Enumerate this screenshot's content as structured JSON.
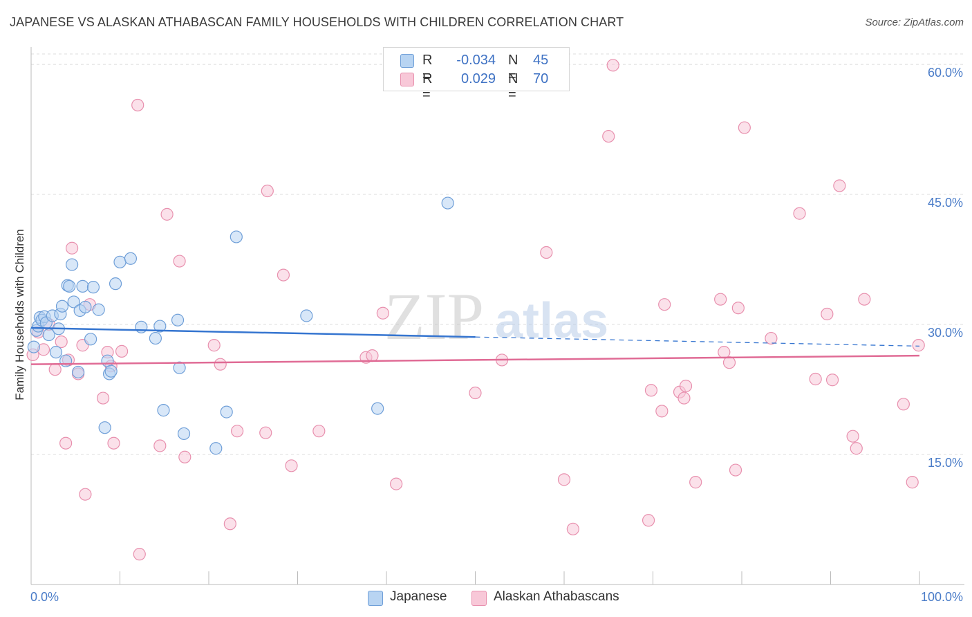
{
  "title": "JAPANESE VS ALASKAN ATHABASCAN FAMILY HOUSEHOLDS WITH CHILDREN CORRELATION CHART",
  "source": "Source: ZipAtlas.com",
  "watermark": {
    "zip": "ZIP",
    "atlas": "atlas"
  },
  "legend": {
    "japanese": {
      "r_label": "R =",
      "r_value": "-0.034",
      "n_label": "N =",
      "n_value": "45"
    },
    "alaskan": {
      "r_label": "R =",
      "r_value": " 0.029",
      "n_label": "N =",
      "n_value": "70"
    }
  },
  "bottom_legend": {
    "japanese": "Japanese",
    "alaskan": "Alaskan Athabascans"
  },
  "colors": {
    "japanese_fill": "#b8d4f2",
    "japanese_stroke": "#6f9fd8",
    "japanese_line": "#3575d0",
    "alaskan_fill": "#f8c8d8",
    "alaskan_stroke": "#e890ae",
    "alaskan_line": "#e06b95",
    "tick": "#4a7cc8",
    "grid": "#dcdcdc"
  },
  "chart_data": {
    "type": "scatter",
    "title": "JAPANESE VS ALASKAN ATHABASCAN FAMILY HOUSEHOLDS WITH CHILDREN CORRELATION CHART",
    "xlabel": "",
    "ylabel": "Family Households with Children",
    "xlim": [
      0,
      100
    ],
    "ylim": [
      0,
      62
    ],
    "x_tick_labels": [
      "0.0%",
      "100.0%"
    ],
    "y_ticks": [
      15,
      30,
      45,
      60
    ],
    "y_tick_labels": [
      "15.0%",
      "30.0%",
      "45.0%",
      "60.0%"
    ],
    "series": [
      {
        "name": "Japanese",
        "r": -0.034,
        "n": 45,
        "trend": {
          "x0": 0,
          "y0": 29.6,
          "x1": 100,
          "y1": 27.5,
          "solid_until": 50
        },
        "points": [
          [
            0.3,
            27.4
          ],
          [
            0.6,
            29.3
          ],
          [
            0.8,
            29.8
          ],
          [
            1.0,
            30.8
          ],
          [
            1.2,
            30.5
          ],
          [
            1.5,
            30.9
          ],
          [
            1.7,
            30.2
          ],
          [
            2.0,
            28.8
          ],
          [
            2.4,
            31.0
          ],
          [
            2.8,
            26.8
          ],
          [
            3.1,
            29.5
          ],
          [
            3.3,
            31.2
          ],
          [
            3.5,
            32.1
          ],
          [
            3.9,
            25.8
          ],
          [
            4.1,
            34.5
          ],
          [
            4.3,
            34.4
          ],
          [
            4.6,
            36.9
          ],
          [
            4.8,
            32.6
          ],
          [
            5.3,
            24.5
          ],
          [
            5.5,
            31.6
          ],
          [
            5.8,
            34.4
          ],
          [
            6.1,
            32.0
          ],
          [
            6.7,
            28.3
          ],
          [
            7.0,
            34.3
          ],
          [
            7.6,
            31.7
          ],
          [
            8.3,
            18.1
          ],
          [
            8.6,
            25.8
          ],
          [
            8.8,
            24.3
          ],
          [
            9.0,
            24.6
          ],
          [
            9.5,
            34.7
          ],
          [
            10.0,
            37.2
          ],
          [
            11.2,
            37.6
          ],
          [
            12.4,
            29.7
          ],
          [
            14.0,
            28.4
          ],
          [
            14.5,
            29.8
          ],
          [
            14.9,
            20.1
          ],
          [
            16.5,
            30.5
          ],
          [
            16.7,
            25.0
          ],
          [
            17.2,
            17.4
          ],
          [
            20.8,
            15.7
          ],
          [
            22.0,
            19.9
          ],
          [
            23.1,
            40.1
          ],
          [
            31.0,
            31.0
          ],
          [
            39.0,
            20.3
          ],
          [
            46.9,
            44.0
          ]
        ]
      },
      {
        "name": "Alaskan Athabascans",
        "r": 0.029,
        "n": 70,
        "trend": {
          "x0": 0,
          "y0": 25.4,
          "x1": 100,
          "y1": 26.4
        },
        "points": [
          [
            0.2,
            26.5
          ],
          [
            0.8,
            29.1
          ],
          [
            1.4,
            27.1
          ],
          [
            2.0,
            30.0
          ],
          [
            2.7,
            24.8
          ],
          [
            3.4,
            28.0
          ],
          [
            3.9,
            16.3
          ],
          [
            4.2,
            25.9
          ],
          [
            4.6,
            38.8
          ],
          [
            5.3,
            24.3
          ],
          [
            5.8,
            27.6
          ],
          [
            6.1,
            10.4
          ],
          [
            6.6,
            32.3
          ],
          [
            8.1,
            21.5
          ],
          [
            8.6,
            26.8
          ],
          [
            9.0,
            25.2
          ],
          [
            9.3,
            16.3
          ],
          [
            10.2,
            26.9
          ],
          [
            12.0,
            55.3
          ],
          [
            12.2,
            3.5
          ],
          [
            14.5,
            16.0
          ],
          [
            15.3,
            42.7
          ],
          [
            16.7,
            37.3
          ],
          [
            17.3,
            14.7
          ],
          [
            20.6,
            27.6
          ],
          [
            21.3,
            25.4
          ],
          [
            22.4,
            7.0
          ],
          [
            23.2,
            17.7
          ],
          [
            26.4,
            17.5
          ],
          [
            26.6,
            45.4
          ],
          [
            28.4,
            35.7
          ],
          [
            29.3,
            13.7
          ],
          [
            32.4,
            17.7
          ],
          [
            37.7,
            26.2
          ],
          [
            38.4,
            26.4
          ],
          [
            39.6,
            31.3
          ],
          [
            41.1,
            11.6
          ],
          [
            50.0,
            22.1
          ],
          [
            53.0,
            25.9
          ],
          [
            58.0,
            38.3
          ],
          [
            60.0,
            12.1
          ],
          [
            61.0,
            6.4
          ],
          [
            65.0,
            51.7
          ],
          [
            65.5,
            59.9
          ],
          [
            69.5,
            7.4
          ],
          [
            69.8,
            22.4
          ],
          [
            71.0,
            20.0
          ],
          [
            71.3,
            32.3
          ],
          [
            73.0,
            22.2
          ],
          [
            73.5,
            21.5
          ],
          [
            73.7,
            22.9
          ],
          [
            74.8,
            11.8
          ],
          [
            77.6,
            32.9
          ],
          [
            78.0,
            26.8
          ],
          [
            78.6,
            25.6
          ],
          [
            79.3,
            13.2
          ],
          [
            79.6,
            31.9
          ],
          [
            80.3,
            52.7
          ],
          [
            83.3,
            28.4
          ],
          [
            86.5,
            42.8
          ],
          [
            88.3,
            23.7
          ],
          [
            89.6,
            31.2
          ],
          [
            90.2,
            23.6
          ],
          [
            91.0,
            46.0
          ],
          [
            92.5,
            17.1
          ],
          [
            92.9,
            15.7
          ],
          [
            93.8,
            32.9
          ],
          [
            98.2,
            20.8
          ],
          [
            99.2,
            11.8
          ],
          [
            99.9,
            27.6
          ]
        ]
      }
    ]
  }
}
